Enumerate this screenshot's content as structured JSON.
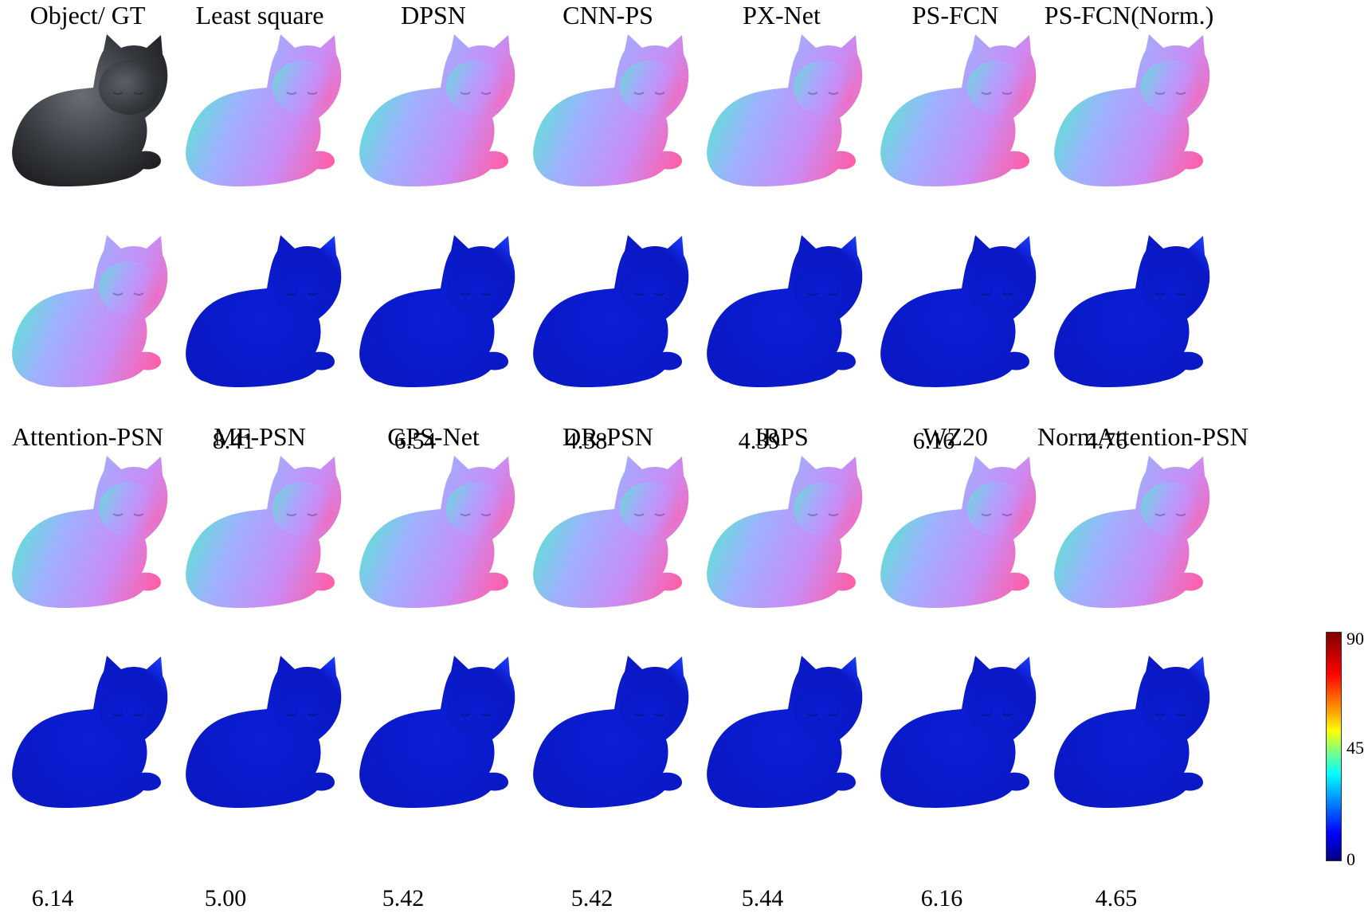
{
  "rows": [
    {
      "labels": [
        "Object/ GT",
        "Least square",
        "DPSN",
        "CNN-PS",
        "PX-Net",
        "PS-FCN",
        "PS-FCN(Norm.)"
      ],
      "maes": [
        "",
        "8.41",
        "6.54",
        "4.38",
        "4.39",
        "6.16",
        "4.76"
      ]
    },
    {
      "labels": [
        "Attention-PSN",
        "MF-PSN",
        "GPS-Net",
        "DR-PSN",
        "IRPS",
        "WZ20",
        "NormAttention-PSN"
      ],
      "maes": [
        "6.14",
        "5.00",
        "5.42",
        "5.42",
        "5.44",
        "6.16",
        "4.65"
      ]
    }
  ],
  "colorbar": {
    "max": "90",
    "mid": "45",
    "min": "0"
  }
}
